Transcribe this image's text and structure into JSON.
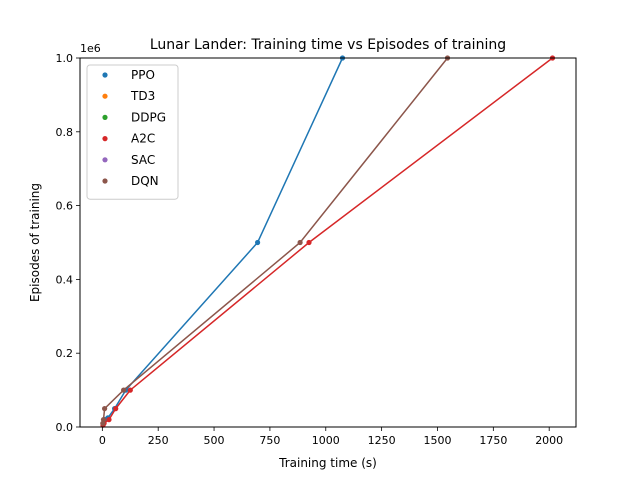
{
  "chart_data": {
    "type": "line",
    "title": "Lunar Lander: Training time vs Episodes of training",
    "xlabel": "Training time (s)",
    "ylabel": "Episodes of training",
    "y_offset_label": "1e6",
    "xlim": [
      -100,
      2120
    ],
    "ylim": [
      0,
      1000000
    ],
    "xticks": [
      0,
      250,
      500,
      750,
      1000,
      1250,
      1500,
      1750,
      2000
    ],
    "xtick_labels": [
      "0",
      "250",
      "500",
      "750",
      "1000",
      "1250",
      "1500",
      "1750",
      "2000"
    ],
    "yticks": [
      0,
      200000,
      400000,
      600000,
      800000,
      1000000
    ],
    "ytick_labels": [
      "0.0",
      "0.2",
      "0.4",
      "0.6",
      "0.8",
      "1.0"
    ],
    "grid": false,
    "legend_position": "top-left",
    "series": [
      {
        "name": "PPO",
        "color": "#1f77b4",
        "x": [
          5,
          12,
          25,
          55,
          105,
          695,
          1075
        ],
        "y": [
          10000,
          20000,
          25000,
          50000,
          100000,
          500000,
          1000000
        ]
      },
      {
        "name": "TD3",
        "color": "#ff7f0e",
        "x": [],
        "y": []
      },
      {
        "name": "DDPG",
        "color": "#2ca02c",
        "x": [],
        "y": []
      },
      {
        "name": "A2C",
        "color": "#d62728",
        "x": [
          3,
          8,
          30,
          60,
          125,
          925,
          2015
        ],
        "y": [
          5000,
          10000,
          20000,
          50000,
          100000,
          500000,
          1000000
        ]
      },
      {
        "name": "SAC",
        "color": "#9467bd",
        "x": [],
        "y": []
      },
      {
        "name": "DQN",
        "color": "#8c564b",
        "x": [
          2,
          5,
          10,
          95,
          885,
          1545
        ],
        "y": [
          10000,
          20000,
          50000,
          100000,
          500000,
          1000000
        ]
      }
    ]
  }
}
